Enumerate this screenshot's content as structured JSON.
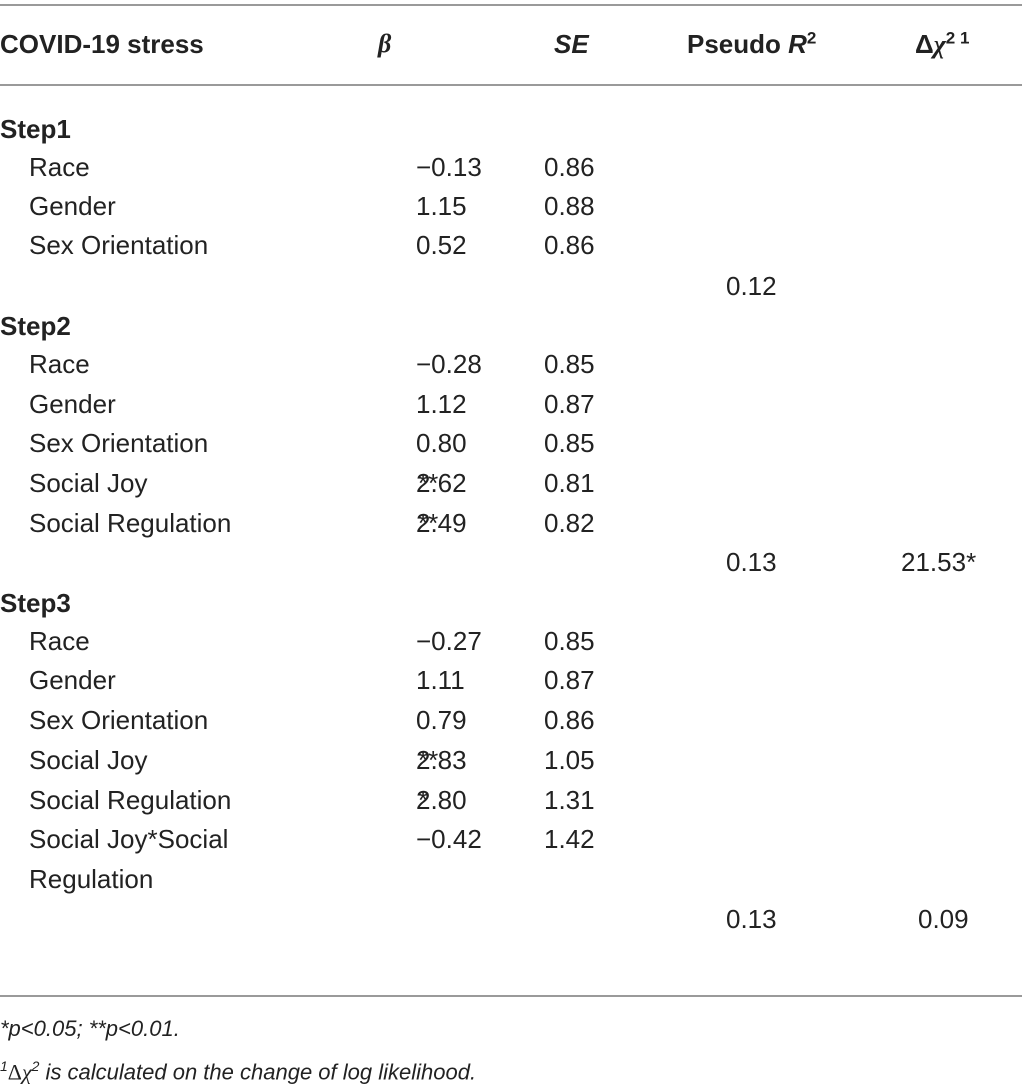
{
  "table": {
    "headers": {
      "col0": "COVID-19 stress",
      "beta": "β",
      "se": "SE",
      "pseudo_r2_prefix": "Pseudo ",
      "pseudo_r2_var": "R",
      "pseudo_r2_sup": "2",
      "dchi_prefix": "Δ",
      "dchi_var": "χ",
      "dchi_sup": "2 1"
    },
    "steps": [
      {
        "label": "Step1",
        "rows": [
          {
            "var": "Race",
            "beta": "−0.13",
            "stars": "",
            "se": "0.86"
          },
          {
            "var": "Gender",
            "beta": "1.15",
            "stars": "",
            "se": "0.88"
          },
          {
            "var": "Sex Orientation",
            "beta": "0.52",
            "stars": "",
            "se": "0.86"
          }
        ],
        "pseudo_r2": "0.12",
        "delta_chi2": ""
      },
      {
        "label": "Step2",
        "rows": [
          {
            "var": "Race",
            "beta": "−0.28",
            "stars": "",
            "se": "0.85"
          },
          {
            "var": "Gender",
            "beta": "1.12",
            "stars": "",
            "se": "0.87"
          },
          {
            "var": "Sex Orientation",
            "beta": "0.80",
            "stars": "",
            "se": "0.85"
          },
          {
            "var": "Social Joy",
            "beta": "2.62",
            "stars": "**",
            "se": "0.81"
          },
          {
            "var": "Social Regulation",
            "beta": "2.49",
            "stars": "**",
            "se": "0.82"
          }
        ],
        "pseudo_r2": "0.13",
        "delta_chi2": "21.53*"
      },
      {
        "label": "Step3",
        "rows": [
          {
            "var": "Race",
            "beta": "−0.27",
            "stars": "",
            "se": "0.85"
          },
          {
            "var": "Gender",
            "beta": "1.11",
            "stars": "",
            "se": "0.87"
          },
          {
            "var": "Sex Orientation",
            "beta": "0.79",
            "stars": "",
            "se": "0.86"
          },
          {
            "var": "Social Joy",
            "beta": "2.83",
            "stars": "**",
            "se": "1.05"
          },
          {
            "var": "Social Regulation",
            "beta": "2.80",
            "stars": "*",
            "se": "1.31"
          },
          {
            "var": "Social Joy*Social",
            "var_cont": "Regulation",
            "beta": "−0.42",
            "stars": "",
            "se": "1.42"
          }
        ],
        "pseudo_r2": "0.13",
        "delta_chi2": "0.09"
      }
    ]
  },
  "footnotes": {
    "sig": "*p<0.05; **p<0.01.",
    "note_sup": "1",
    "note_delta": "Δ",
    "note_chi": "χ",
    "note_chi_sup": "2",
    "note_text": " is calculated on the change of log likelihood."
  }
}
